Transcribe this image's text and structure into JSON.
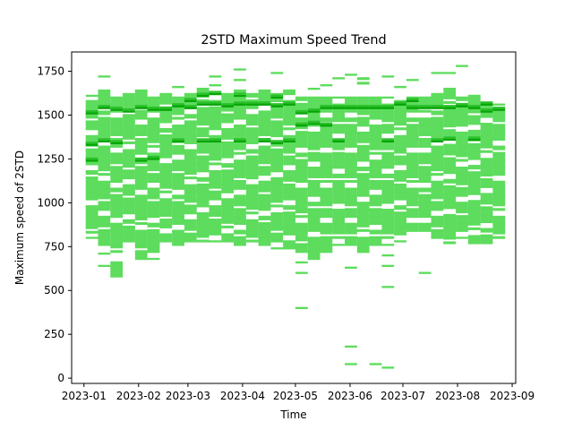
{
  "chart_data": {
    "type": "heatmap",
    "title": "2STD Maximum Speed Trend",
    "xlabel": "Time",
    "ylabel": "Maximum speed of 2STD",
    "grid": false,
    "x_axis": {
      "type": "date",
      "range": [
        "2022-12-25",
        "2023-09-03"
      ],
      "ticks": [
        "2023-01-01",
        "2023-02-01",
        "2023-03-01",
        "2023-04-01",
        "2023-05-01",
        "2023-06-01",
        "2023-07-01",
        "2023-08-01",
        "2023-09-01"
      ],
      "tick_labels": [
        "2023-01",
        "2023-02",
        "2023-03",
        "2023-04",
        "2023-05",
        "2023-06",
        "2023-07",
        "2023-08",
        "2023-09"
      ]
    },
    "y_axis": {
      "range": [
        -30,
        1860
      ],
      "ticks": [
        0,
        250,
        500,
        750,
        1000,
        1250,
        1500,
        1750
      ]
    },
    "colors": {
      "low": "#5ddc5d",
      "mid": "#2bc02b",
      "high": "#06a506"
    },
    "bin": {
      "week_start": "2023-01-02",
      "week_days": 7,
      "speed_bin": 12
    },
    "cells": [
      {
        "week": "2023-01-02",
        "speeds": [
          800,
          830,
          860,
          900,
          940,
          980,
          1020,
          1060,
          1100,
          1140,
          1180,
          1220,
          1260,
          1300,
          1340,
          1380,
          1420,
          1460,
          1500,
          1540,
          1580,
          1610
        ],
        "dense": [
          1240,
          1330,
          1510
        ]
      },
      {
        "week": "2023-01-09",
        "speeds": [
          640,
          710,
          760,
          800,
          840,
          880,
          920,
          960,
          1000,
          1040,
          1080,
          1120,
          1160,
          1200,
          1240,
          1280,
          1320,
          1360,
          1400,
          1440,
          1480,
          1520,
          1560,
          1600,
          1640,
          1720
        ],
        "dense": [
          1350,
          1540
        ]
      },
      {
        "week": "2023-01-16",
        "speeds": [
          580,
          620,
          660,
          720,
          760,
          800,
          840,
          880,
          920,
          960,
          1000,
          1040,
          1080,
          1120,
          1160,
          1200,
          1240,
          1280,
          1320,
          1360,
          1400,
          1440,
          1480,
          1520,
          1560,
          1600
        ],
        "dense": [
          1340,
          1530
        ]
      },
      {
        "week": "2023-01-23",
        "speeds": [
          780,
          820,
          860,
          900,
          940,
          980,
          1020,
          1060,
          1100,
          1140,
          1180,
          1220,
          1260,
          1300,
          1340,
          1380,
          1420,
          1460,
          1500,
          1540,
          1580,
          1620
        ],
        "dense": [
          1520
        ]
      },
      {
        "week": "2023-01-30",
        "speeds": [
          680,
          720,
          760,
          800,
          840,
          880,
          920,
          960,
          1000,
          1040,
          1080,
          1120,
          1160,
          1200,
          1240,
          1280,
          1320,
          1360,
          1400,
          1440,
          1480,
          1520,
          1560,
          1600,
          1640
        ],
        "dense": [
          1240,
          1540
        ]
      },
      {
        "week": "2023-02-06",
        "speeds": [
          680,
          720,
          760,
          800,
          840,
          880,
          920,
          960,
          1000,
          1040,
          1080,
          1120,
          1160,
          1200,
          1240,
          1280,
          1320,
          1360,
          1400,
          1440,
          1480,
          1520,
          1560,
          1600
        ],
        "dense": [
          1250,
          1530
        ]
      },
      {
        "week": "2023-02-13",
        "speeds": [
          780,
          820,
          860,
          900,
          940,
          980,
          1020,
          1060,
          1100,
          1140,
          1180,
          1220,
          1260,
          1300,
          1340,
          1380,
          1420,
          1460,
          1500,
          1540,
          1580,
          1620
        ],
        "dense": [
          1530
        ]
      },
      {
        "week": "2023-02-20",
        "speeds": [
          760,
          800,
          840,
          880,
          920,
          960,
          1000,
          1040,
          1080,
          1120,
          1160,
          1200,
          1240,
          1280,
          1320,
          1360,
          1400,
          1440,
          1480,
          1520,
          1560,
          1600,
          1660
        ],
        "dense": [
          1350,
          1550
        ]
      },
      {
        "week": "2023-02-27",
        "speeds": [
          780,
          820,
          860,
          900,
          940,
          980,
          1020,
          1060,
          1100,
          1140,
          1180,
          1220,
          1260,
          1300,
          1340,
          1380,
          1420,
          1460,
          1500,
          1540,
          1580,
          1620
        ],
        "dense": [
          1540,
          1580
        ]
      },
      {
        "week": "2023-03-06",
        "speeds": [
          780,
          820,
          860,
          900,
          940,
          980,
          1020,
          1060,
          1100,
          1140,
          1180,
          1220,
          1260,
          1300,
          1340,
          1380,
          1420,
          1460,
          1500,
          1540,
          1580,
          1620,
          1650
        ],
        "dense": [
          1350,
          1560,
          1610
        ]
      },
      {
        "week": "2023-03-13",
        "speeds": [
          780,
          820,
          860,
          900,
          940,
          980,
          1020,
          1060,
          1100,
          1140,
          1180,
          1220,
          1260,
          1300,
          1340,
          1380,
          1420,
          1460,
          1500,
          1540,
          1580,
          1620,
          1670,
          1720
        ],
        "dense": [
          1350,
          1560,
          1620
        ]
      },
      {
        "week": "2023-03-20",
        "speeds": [
          780,
          820,
          860,
          900,
          940,
          980,
          1020,
          1060,
          1100,
          1140,
          1180,
          1220,
          1260,
          1300,
          1340,
          1380,
          1420,
          1460,
          1500,
          1540,
          1580,
          1620
        ],
        "dense": [
          1550
        ]
      },
      {
        "week": "2023-03-27",
        "speeds": [
          760,
          800,
          840,
          880,
          920,
          960,
          1000,
          1040,
          1080,
          1120,
          1160,
          1200,
          1240,
          1280,
          1320,
          1360,
          1400,
          1440,
          1480,
          1520,
          1560,
          1600,
          1640,
          1700,
          1760
        ],
        "dense": [
          1350,
          1560,
          1610
        ]
      },
      {
        "week": "2023-04-03",
        "speeds": [
          780,
          820,
          860,
          900,
          940,
          980,
          1020,
          1060,
          1100,
          1140,
          1180,
          1220,
          1260,
          1300,
          1340,
          1380,
          1420,
          1460,
          1500,
          1540,
          1580,
          1620
        ],
        "dense": [
          1560
        ]
      },
      {
        "week": "2023-04-10",
        "speeds": [
          760,
          800,
          840,
          880,
          920,
          960,
          1000,
          1040,
          1080,
          1120,
          1160,
          1200,
          1240,
          1280,
          1320,
          1360,
          1400,
          1440,
          1480,
          1520,
          1560,
          1600,
          1640
        ],
        "dense": [
          1350,
          1560
        ]
      },
      {
        "week": "2023-04-17",
        "speeds": [
          740,
          780,
          820,
          860,
          900,
          940,
          980,
          1020,
          1060,
          1100,
          1140,
          1180,
          1220,
          1260,
          1300,
          1340,
          1380,
          1420,
          1460,
          1500,
          1540,
          1580,
          1620,
          1740
        ],
        "dense": [
          1340,
          1550,
          1600
        ]
      },
      {
        "week": "2023-04-24",
        "speeds": [
          740,
          780,
          820,
          860,
          900,
          940,
          980,
          1020,
          1060,
          1100,
          1140,
          1180,
          1220,
          1260,
          1300,
          1340,
          1380,
          1420,
          1460,
          1500,
          1540,
          1580,
          1620,
          1640
        ],
        "dense": [
          1350,
          1560
        ]
      },
      {
        "week": "2023-05-01",
        "speeds": [
          400,
          600,
          660,
          720,
          760,
          800,
          840,
          880,
          920,
          960,
          1000,
          1040,
          1080,
          1120,
          1160,
          1200,
          1240,
          1280,
          1320,
          1360,
          1400,
          1440,
          1480,
          1520,
          1560,
          1600
        ],
        "dense": [
          1440,
          1510
        ]
      },
      {
        "week": "2023-05-08",
        "speeds": [
          680,
          720,
          760,
          800,
          840,
          880,
          920,
          960,
          1000,
          1040,
          1080,
          1120,
          1160,
          1200,
          1240,
          1280,
          1320,
          1360,
          1400,
          1440,
          1480,
          1520,
          1560,
          1600,
          1650
        ],
        "dense": [
          1450,
          1520
        ]
      },
      {
        "week": "2023-05-15",
        "speeds": [
          720,
          760,
          800,
          840,
          880,
          920,
          960,
          1000,
          1040,
          1080,
          1120,
          1160,
          1200,
          1240,
          1280,
          1320,
          1360,
          1400,
          1440,
          1480,
          1520,
          1560,
          1600,
          1670
        ],
        "dense": [
          1440,
          1540
        ]
      },
      {
        "week": "2023-05-22",
        "speeds": [
          760,
          800,
          840,
          880,
          920,
          960,
          1000,
          1040,
          1080,
          1120,
          1160,
          1200,
          1240,
          1280,
          1320,
          1360,
          1400,
          1440,
          1480,
          1520,
          1560,
          1600,
          1710
        ],
        "dense": [
          1350,
          1540
        ]
      },
      {
        "week": "2023-05-29",
        "speeds": [
          80,
          180,
          630,
          760,
          800,
          840,
          880,
          920,
          960,
          1000,
          1040,
          1080,
          1120,
          1160,
          1200,
          1240,
          1280,
          1320,
          1360,
          1400,
          1440,
          1480,
          1520,
          1560,
          1600,
          1730
        ],
        "dense": [
          1540
        ]
      },
      {
        "week": "2023-06-05",
        "speeds": [
          720,
          760,
          800,
          840,
          880,
          920,
          960,
          1000,
          1040,
          1080,
          1120,
          1160,
          1200,
          1240,
          1280,
          1320,
          1360,
          1400,
          1440,
          1480,
          1520,
          1560,
          1600,
          1680,
          1710
        ],
        "dense": [
          1540
        ]
      },
      {
        "week": "2023-06-12",
        "speeds": [
          80,
          760,
          800,
          840,
          880,
          920,
          960,
          1000,
          1040,
          1080,
          1120,
          1160,
          1200,
          1240,
          1280,
          1320,
          1360,
          1400,
          1440,
          1480,
          1520,
          1560,
          1600
        ],
        "dense": [
          1540
        ]
      },
      {
        "week": "2023-06-19",
        "speeds": [
          60,
          520,
          640,
          700,
          760,
          800,
          840,
          880,
          920,
          960,
          1000,
          1040,
          1080,
          1120,
          1160,
          1200,
          1240,
          1280,
          1320,
          1360,
          1400,
          1440,
          1480,
          1520,
          1560,
          1600,
          1720
        ],
        "dense": [
          1350,
          1540
        ]
      },
      {
        "week": "2023-06-26",
        "speeds": [
          780,
          820,
          860,
          900,
          940,
          980,
          1020,
          1060,
          1100,
          1140,
          1180,
          1220,
          1260,
          1300,
          1340,
          1380,
          1420,
          1460,
          1500,
          1540,
          1580,
          1660
        ],
        "dense": [
          1560
        ]
      },
      {
        "week": "2023-07-03",
        "speeds": [
          840,
          880,
          920,
          960,
          1000,
          1040,
          1080,
          1120,
          1160,
          1200,
          1240,
          1280,
          1320,
          1360,
          1400,
          1440,
          1480,
          1520,
          1560,
          1600,
          1700
        ],
        "dense": [
          1540,
          1580
        ]
      },
      {
        "week": "2023-07-10",
        "speeds": [
          600,
          840,
          880,
          920,
          960,
          1000,
          1040,
          1080,
          1120,
          1160,
          1200,
          1240,
          1280,
          1320,
          1360,
          1400,
          1440,
          1480,
          1520,
          1560,
          1600
        ],
        "dense": [
          1540
        ]
      },
      {
        "week": "2023-07-17",
        "speeds": [
          800,
          840,
          880,
          920,
          960,
          1000,
          1040,
          1080,
          1120,
          1160,
          1200,
          1240,
          1280,
          1320,
          1360,
          1400,
          1440,
          1480,
          1520,
          1560,
          1600,
          1620,
          1740
        ],
        "dense": [
          1350,
          1540
        ]
      },
      {
        "week": "2023-07-24",
        "speeds": [
          770,
          810,
          850,
          890,
          930,
          970,
          1010,
          1050,
          1090,
          1130,
          1170,
          1210,
          1250,
          1290,
          1330,
          1370,
          1410,
          1450,
          1490,
          1530,
          1570,
          1610,
          1650,
          1740
        ],
        "dense": [
          1360,
          1540
        ]
      },
      {
        "week": "2023-07-31",
        "speeds": [
          800,
          840,
          880,
          920,
          960,
          1000,
          1040,
          1080,
          1120,
          1160,
          1200,
          1240,
          1280,
          1320,
          1360,
          1400,
          1440,
          1480,
          1520,
          1560,
          1600,
          1780
        ],
        "dense": [
          1550
        ]
      },
      {
        "week": "2023-08-07",
        "speeds": [
          770,
          810,
          850,
          890,
          930,
          970,
          1010,
          1050,
          1090,
          1130,
          1170,
          1210,
          1250,
          1290,
          1330,
          1370,
          1410,
          1450,
          1490,
          1530,
          1570,
          1610
        ],
        "dense": [
          1360,
          1540
        ]
      },
      {
        "week": "2023-08-14",
        "speeds": [
          770,
          810,
          850,
          890,
          930,
          970,
          1010,
          1050,
          1090,
          1130,
          1170,
          1210,
          1250,
          1290,
          1330,
          1370,
          1410,
          1450,
          1490,
          1530,
          1570
        ],
        "dense": [
          1520,
          1560
        ]
      },
      {
        "week": "2023-08-21",
        "speeds": [
          800,
          840,
          880,
          920,
          960,
          1000,
          1040,
          1080,
          1120,
          1160,
          1200,
          1240,
          1280,
          1320,
          1360,
          1400,
          1440,
          1480,
          1520,
          1560
        ],
        "dense": [
          1530
        ]
      }
    ]
  }
}
